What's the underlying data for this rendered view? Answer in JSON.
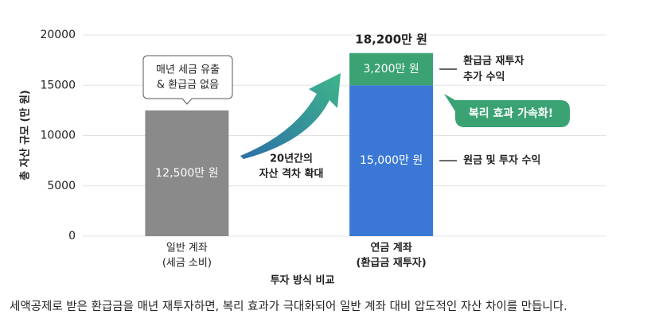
{
  "chart_data": {
    "type": "stacked-bar",
    "categories": [
      [
        "일반 계좌",
        "(세금 소비)"
      ],
      [
        "연금 계좌",
        "(환급금 재투자)"
      ]
    ],
    "series": [
      {
        "name": [
          "원금 및 투자 수익"
        ],
        "colors": [
          "#8a8a8a",
          "#3b78d6"
        ],
        "values": [
          12500,
          15000
        ],
        "value_labels": [
          "12,500만 원",
          "15,000만 원"
        ]
      },
      {
        "name": [
          "환급금 재투자",
          "추가 수익"
        ],
        "colors": [
          null,
          "#3aa273"
        ],
        "values": [
          null,
          3200
        ],
        "value_labels": [
          null,
          "3,200만 원"
        ]
      }
    ],
    "total_labels": [
      null,
      "18,200만 원"
    ],
    "totals": [
      null,
      18200
    ],
    "ylim": [
      0,
      20000
    ],
    "yticks": [
      0,
      5000,
      10000,
      15000,
      20000
    ],
    "grid": true,
    "ylabel": "총 자산 규모 (만 원)",
    "xlabel": "투자 방식 비교",
    "annotations": {
      "callout": [
        "매년 세금 유출",
        "& 환급금 없음"
      ],
      "arrow_text": [
        "20년간의",
        "자산 격차 확대"
      ],
      "badge": "복리 효과 가속화!"
    },
    "caption": "세액공제로 받은 환급금을 매년 재투자하면, 복리 효과가 극대화되어 일반 계좌 대비 압도적인 자산 차이를 만듭니다."
  }
}
